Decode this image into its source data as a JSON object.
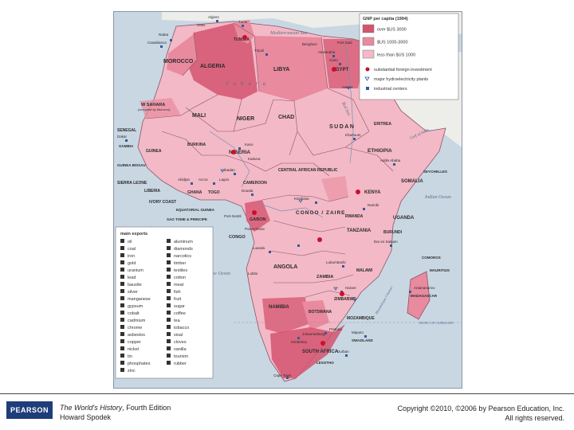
{
  "map": {
    "legend": {
      "title": "GNP per capita (1994)",
      "items": [
        {
          "label": "over $US 3000",
          "color": "#d4546e"
        },
        {
          "label": "$US 1000-3000",
          "color": "#e98a9e"
        },
        {
          "label": "less than $US 1000",
          "color": "#f3b9c6"
        }
      ],
      "symbols": [
        {
          "label": "substantial foreign investment"
        },
        {
          "label": "major hydroelectricity plants"
        },
        {
          "label": "industrial centers"
        }
      ]
    },
    "exports_key": {
      "title": "main exports",
      "col1": [
        "oil",
        "coal",
        "iron",
        "gold",
        "uranium",
        "lead",
        "bauxite",
        "silver",
        "manganese",
        "gypsum",
        "cobalt",
        "cadmium",
        "chrome",
        "asbestos",
        "copper",
        "nickel",
        "tin",
        "phosphates",
        "zinc"
      ],
      "col2": [
        "aluminum",
        "diamonds",
        "narcotics",
        "timber",
        "textiles",
        "cotton",
        "meat",
        "fish",
        "fruit",
        "sugar",
        "coffee",
        "tea",
        "tobacco",
        "sisal",
        "cloves",
        "vanilla",
        "tourism",
        "rubber"
      ]
    },
    "seas": {
      "mediterranean": "Mediterranean Sea",
      "red_sea": "Red Sea",
      "atlantic": "Atlantic Ocean",
      "indian": "Indian Ocean",
      "gulf_aden": "Gulf of Aden",
      "sahara": "Sahara",
      "mozambique_channel": "Mozambique Channel",
      "tropic": "TROPIC OF CAPRICORN"
    },
    "countries": {
      "morocco": "MOROCCO",
      "algeria": "ALGERIA",
      "tunisia": "TUNISIA",
      "libya": "LIBYA",
      "egypt": "EGYPT",
      "w_sahara": "W SAHARA",
      "w_sahara_note": "(occupied by Morocco)",
      "mali": "MALI",
      "niger": "NIGER",
      "chad": "CHAD",
      "sudan": "SUDAN",
      "eritrea": "ERITREA",
      "ethiopia": "ETHIOPIA",
      "senegal": "SENEGAL",
      "gambia": "GAMBIA",
      "guinea_bissau": "GUINEA BISSAU",
      "guinea": "GUINEA",
      "sierra_leone": "SIERRA LEONE",
      "liberia": "LIBERIA",
      "burkina": "BURKINA",
      "nigeria": "NIGERIA",
      "ivory_coast": "IVORY COAST",
      "ghana": "GHANA",
      "togo": "TOGO",
      "cameroon": "CAMEROON",
      "car": "CENTRAL AFRICAN REPUBLIC",
      "eq_guinea": "EQUATORIAL GUINEA",
      "sao_tome": "SAO TOME & PRINCIPE",
      "gabon": "GABON",
      "congo": "CONGO",
      "congo_zaire": "CONGO / ZAIRE",
      "somalia": "SOMALIA",
      "seychelles": "SEYCHELLES",
      "kenya": "KENYA",
      "uganda": "UGANDA",
      "rwanda": "RWANDA",
      "burundi": "BURUNDI",
      "tanzania": "TANZANIA",
      "comoros": "COMOROS",
      "angola": "ANGOLA",
      "zambia": "ZAMBIA",
      "malawi": "MALAWI",
      "zimbabwe": "ZIMBABWE",
      "mozambique": "MOZAMBIQUE",
      "madagascar": "MADAGASCAR",
      "mauritius": "MAURITIUS",
      "namibia": "NAMIBIA",
      "botswana": "BOTSWANA",
      "south_africa": "SOUTH AFRICA",
      "swaziland": "SWAZILAND",
      "lesotho": "LESOTHO"
    },
    "cities": {
      "algiers": "Algiers",
      "oran": "Oran",
      "tunis": "Tunis",
      "rabat": "Rabat",
      "casablanca": "Casablanca",
      "tripoli": "Tripoli",
      "benghazi": "Benghazi",
      "alexandria": "Alexandria",
      "port_said": "Port Said",
      "cairo": "Cairo",
      "aswan": "Aswan",
      "khartoum": "Khartoum",
      "dakar": "Dakar",
      "kano": "Kano",
      "kaduna": "Kaduna",
      "ibadan": "Ibadan",
      "lagos": "Lagos",
      "abidjan": "Abidjan",
      "accra": "Accra",
      "douala": "Douala",
      "kinshasa": "Kinshasa",
      "nairobi": "Nairobi",
      "addis_ababa": "Addis Ababa",
      "luanda": "Luanda",
      "lubumbashi": "Lubumbashi",
      "dar_es_salaam": "Dar es Salaam",
      "harare": "Harare",
      "pretoria": "Pretoria",
      "johannesburg": "Johannesburg",
      "durban": "Durban",
      "kimberley": "Kimberley",
      "cape_town": "Cape Town",
      "port_gentil": "Port-Gentil",
      "pointe_noire": "Pointe-Noire",
      "lobito": "Lobito",
      "maputo": "Maputo",
      "antananarivo": "Antananarivo"
    }
  },
  "footer": {
    "logo_text": "PEARSON",
    "book_title": "The World's History",
    "book_edition": ", Fourth Edition",
    "author": "Howard Spodek",
    "copyright_line1": "Copyright ©2010, ©2006 by Pearson Education, Inc.",
    "copyright_line2": "All rights reserved."
  }
}
